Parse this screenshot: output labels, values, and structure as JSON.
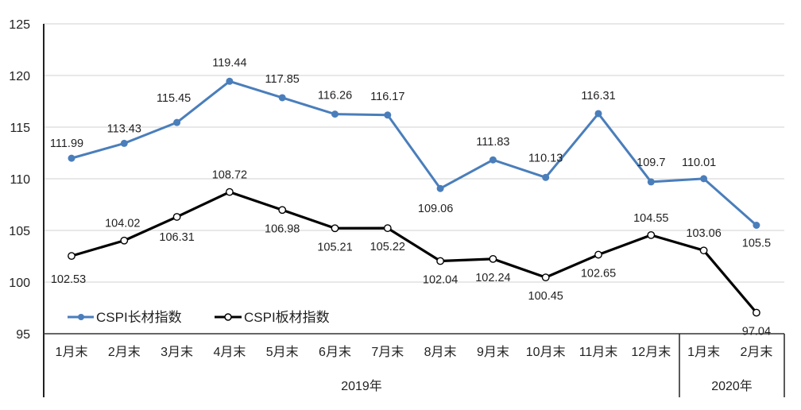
{
  "chart_data": {
    "type": "line",
    "title": "",
    "xlabel": "",
    "ylabel": "",
    "ylim": [
      95,
      125
    ],
    "yticks": [
      95,
      100,
      105,
      110,
      115,
      120,
      125
    ],
    "grid": true,
    "legend_position": "bottom-left inside plot",
    "categories": [
      "1月末",
      "2月末",
      "3月末",
      "4月末",
      "5月末",
      "6月末",
      "7月末",
      "8月末",
      "9月末",
      "10月末",
      "11月末",
      "12月末",
      "1月末",
      "2月末"
    ],
    "category_groups": [
      {
        "label": "2019年",
        "start": 0,
        "end": 11
      },
      {
        "label": "2020年",
        "start": 12,
        "end": 13
      }
    ],
    "series": [
      {
        "name": "CSPI长材指数",
        "color": "#4a7ebb",
        "marker": "filled-circle",
        "values": [
          111.99,
          113.43,
          115.45,
          119.44,
          117.85,
          116.26,
          116.17,
          109.06,
          111.83,
          110.13,
          116.31,
          109.7,
          110.01,
          105.5
        ],
        "labels": [
          "111.99",
          "113.43",
          "115.45",
          "119.44",
          "117.85",
          "116.26",
          "116.17",
          "109.06",
          "111.83",
          "110.13",
          "116.31",
          "109.7",
          "110.01",
          "105.5"
        ]
      },
      {
        "name": "CSPI板材指数",
        "color": "#000000",
        "marker": "hollow-circle",
        "values": [
          102.53,
          104.02,
          106.31,
          108.72,
          106.98,
          105.21,
          105.22,
          102.04,
          102.24,
          100.45,
          102.65,
          104.55,
          103.06,
          97.04
        ],
        "labels": [
          "102.53",
          "104.02",
          "106.31",
          "108.72",
          "106.98",
          "105.21",
          "105.22",
          "102.04",
          "102.24",
          "100.45",
          "102.65",
          "104.55",
          "103.06",
          "97.04"
        ]
      }
    ]
  },
  "legend": {
    "items": [
      {
        "label": "CSPI长材指数"
      },
      {
        "label": "CSPI板材指数"
      }
    ]
  }
}
